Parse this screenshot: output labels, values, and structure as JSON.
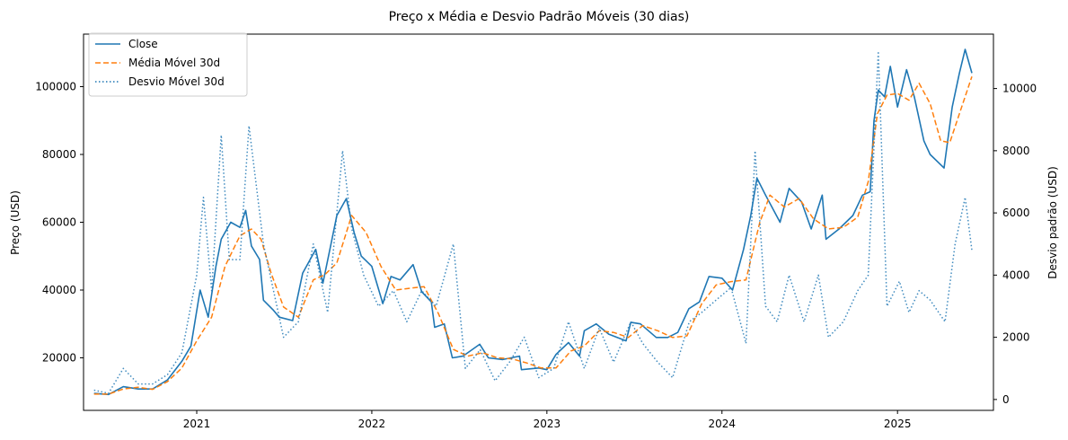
{
  "chart_data": {
    "type": "line",
    "title": "Preço x Média e Desvio Padrão Móveis (30 dias)",
    "ylabel_left": "Preço (USD)",
    "ylabel_right": "Desvio padrão (USD)",
    "xlabel": "",
    "xlim": [
      "2020-05-10",
      "2025-07-20"
    ],
    "ylim_left": [
      4500,
      115500
    ],
    "ylim_right": [
      -350,
      11750
    ],
    "x_ticks": [
      "2021",
      "2022",
      "2023",
      "2024",
      "2025"
    ],
    "y_ticks_left": [
      20000,
      40000,
      60000,
      80000,
      100000
    ],
    "y_ticks_right": [
      0,
      2000,
      4000,
      6000,
      8000,
      10000
    ],
    "legend_position": "upper-left",
    "grid": false,
    "series": [
      {
        "name": "Close",
        "axis": "left",
        "color": "#1f77b4",
        "style": "solid",
        "x": [
          "2020-06-01",
          "2020-07-01",
          "2020-08-01",
          "2020-09-01",
          "2020-10-01",
          "2020-11-01",
          "2020-12-01",
          "2020-12-20",
          "2021-01-08",
          "2021-01-25",
          "2021-02-10",
          "2021-02-21",
          "2021-03-13",
          "2021-04-01",
          "2021-04-13",
          "2021-04-25",
          "2021-05-12",
          "2021-05-20",
          "2021-06-10",
          "2021-06-22",
          "2021-07-20",
          "2021-08-10",
          "2021-09-06",
          "2021-09-21",
          "2021-10-10",
          "2021-10-20",
          "2021-11-09",
          "2021-11-25",
          "2021-12-10",
          "2022-01-01",
          "2022-01-24",
          "2022-02-10",
          "2022-03-01",
          "2022-03-28",
          "2022-04-15",
          "2022-05-05",
          "2022-05-12",
          "2022-06-01",
          "2022-06-18",
          "2022-07-10",
          "2022-08-14",
          "2022-09-01",
          "2022-10-01",
          "2022-11-05",
          "2022-11-09",
          "2022-12-15",
          "2023-01-01",
          "2023-01-20",
          "2023-02-15",
          "2023-03-10",
          "2023-03-20",
          "2023-04-14",
          "2023-05-10",
          "2023-06-15",
          "2023-06-25",
          "2023-07-15",
          "2023-08-17",
          "2023-09-10",
          "2023-10-01",
          "2023-10-24",
          "2023-11-15",
          "2023-12-05",
          "2024-01-01",
          "2024-01-23",
          "2024-02-15",
          "2024-03-01",
          "2024-03-14",
          "2024-04-01",
          "2024-05-01",
          "2024-05-20",
          "2024-06-15",
          "2024-07-05",
          "2024-07-28",
          "2024-08-05",
          "2024-09-01",
          "2024-09-30",
          "2024-10-20",
          "2024-11-05",
          "2024-11-13",
          "2024-11-22",
          "2024-12-05",
          "2024-12-17",
          "2025-01-01",
          "2025-01-20",
          "2025-02-05",
          "2025-02-25",
          "2025-03-10",
          "2025-04-08",
          "2025-04-25",
          "2025-05-10",
          "2025-05-22",
          "2025-06-05"
        ],
        "y": [
          9500,
          9200,
          11500,
          10800,
          10800,
          13500,
          19000,
          23500,
          40000,
          32000,
          47000,
          55000,
          60000,
          58500,
          63500,
          53000,
          49000,
          37000,
          34000,
          32000,
          31000,
          45000,
          52000,
          42000,
          55000,
          62000,
          67000,
          57000,
          50000,
          47000,
          36000,
          44000,
          43000,
          47500,
          39500,
          36500,
          29000,
          30000,
          20000,
          20500,
          24000,
          20000,
          19500,
          20500,
          16500,
          17000,
          16500,
          21000,
          24500,
          20500,
          28000,
          30000,
          27000,
          25000,
          30500,
          30000,
          26000,
          26000,
          27500,
          34500,
          36500,
          44000,
          43500,
          40000,
          52000,
          62000,
          73000,
          68000,
          60000,
          70000,
          66000,
          58000,
          68000,
          55000,
          58000,
          62000,
          68000,
          69000,
          90000,
          99000,
          97000,
          106000,
          94000,
          105000,
          97000,
          84000,
          80000,
          76000,
          94000,
          104000,
          111000,
          104000
        ]
      },
      {
        "name": "Média Móvel 30d",
        "axis": "left",
        "color": "#ff7f0e",
        "style": "dashed",
        "x": [
          "2020-06-01",
          "2020-07-01",
          "2020-08-01",
          "2020-09-01",
          "2020-10-01",
          "2020-11-01",
          "2020-12-01",
          "2021-01-01",
          "2021-02-01",
          "2021-03-01",
          "2021-04-01",
          "2021-04-25",
          "2021-05-15",
          "2021-06-05",
          "2021-07-01",
          "2021-08-01",
          "2021-09-01",
          "2021-09-25",
          "2021-10-20",
          "2021-11-20",
          "2021-12-20",
          "2022-01-20",
          "2022-02-20",
          "2022-03-20",
          "2022-04-20",
          "2022-05-20",
          "2022-06-20",
          "2022-07-20",
          "2022-08-20",
          "2022-09-20",
          "2022-10-20",
          "2022-11-20",
          "2022-12-20",
          "2023-01-20",
          "2023-02-20",
          "2023-03-20",
          "2023-04-20",
          "2023-05-20",
          "2023-06-20",
          "2023-07-20",
          "2023-08-20",
          "2023-09-20",
          "2023-10-20",
          "2023-11-20",
          "2023-12-20",
          "2024-01-20",
          "2024-02-20",
          "2024-03-20",
          "2024-04-10",
          "2024-05-10",
          "2024-06-10",
          "2024-07-10",
          "2024-08-10",
          "2024-09-10",
          "2024-10-10",
          "2024-11-01",
          "2024-11-20",
          "2024-12-10",
          "2025-01-01",
          "2025-01-25",
          "2025-02-15",
          "2025-03-10",
          "2025-04-01",
          "2025-04-20",
          "2025-05-10",
          "2025-06-05"
        ],
        "y": [
          9300,
          9300,
          10800,
          11300,
          10700,
          13000,
          17000,
          25000,
          32000,
          47000,
          56000,
          58000,
          55000,
          45000,
          35000,
          32000,
          43000,
          44500,
          48000,
          62000,
          57000,
          47000,
          40000,
          40500,
          41000,
          33000,
          22500,
          20500,
          21500,
          20000,
          19700,
          18500,
          17000,
          17000,
          22000,
          23500,
          28000,
          27500,
          26000,
          29500,
          28000,
          26000,
          26500,
          36000,
          41500,
          42500,
          43000,
          60000,
          68000,
          64500,
          67000,
          61000,
          58000,
          58500,
          61500,
          72000,
          92000,
          97500,
          98000,
          96000,
          101000,
          95000,
          84000,
          83500,
          92000,
          103000
        ]
      },
      {
        "name": "Desvio Móvel 30d",
        "axis": "right",
        "color": "#1f77b4",
        "style": "dotted",
        "x": [
          "2020-06-01",
          "2020-07-01",
          "2020-08-01",
          "2020-09-01",
          "2020-10-01",
          "2020-11-01",
          "2020-12-01",
          "2021-01-01",
          "2021-01-15",
          "2021-02-01",
          "2021-02-21",
          "2021-03-10",
          "2021-04-01",
          "2021-04-20",
          "2021-05-20",
          "2021-06-10",
          "2021-07-01",
          "2021-08-01",
          "2021-09-01",
          "2021-10-01",
          "2021-11-01",
          "2021-11-20",
          "2021-12-15",
          "2022-01-15",
          "2022-02-15",
          "2022-03-15",
          "2022-04-15",
          "2022-05-15",
          "2022-06-20",
          "2022-07-15",
          "2022-08-15",
          "2022-09-15",
          "2022-10-15",
          "2022-11-15",
          "2022-12-15",
          "2023-01-15",
          "2023-02-15",
          "2023-03-20",
          "2023-04-20",
          "2023-05-20",
          "2023-06-25",
          "2023-07-20",
          "2023-08-20",
          "2023-09-20",
          "2023-10-25",
          "2023-11-20",
          "2023-12-20",
          "2024-01-20",
          "2024-02-20",
          "2024-03-10",
          "2024-04-01",
          "2024-04-25",
          "2024-05-20",
          "2024-06-20",
          "2024-07-20",
          "2024-08-10",
          "2024-09-10",
          "2024-10-10",
          "2024-11-01",
          "2024-11-22",
          "2024-12-10",
          "2025-01-05",
          "2025-01-25",
          "2025-02-15",
          "2025-03-10",
          "2025-04-10",
          "2025-05-01",
          "2025-05-22",
          "2025-06-05"
        ],
        "y": [
          300,
          200,
          1000,
          500,
          500,
          800,
          1500,
          4000,
          6500,
          3500,
          8500,
          4500,
          4500,
          8800,
          5000,
          3500,
          2000,
          2500,
          5000,
          2800,
          8000,
          5500,
          4000,
          3000,
          3500,
          2500,
          3500,
          3000,
          5000,
          1000,
          1600,
          600,
          1200,
          2000,
          700,
          1000,
          2500,
          1000,
          2300,
          1200,
          2500,
          1800,
          1200,
          700,
          2500,
          2800,
          3200,
          3600,
          1800,
          8000,
          3000,
          2500,
          4000,
          2500,
          4000,
          2000,
          2500,
          3500,
          4000,
          11200,
          3000,
          3800,
          2800,
          3500,
          3200,
          2500,
          5000,
          6500,
          4800
        ]
      }
    ]
  }
}
